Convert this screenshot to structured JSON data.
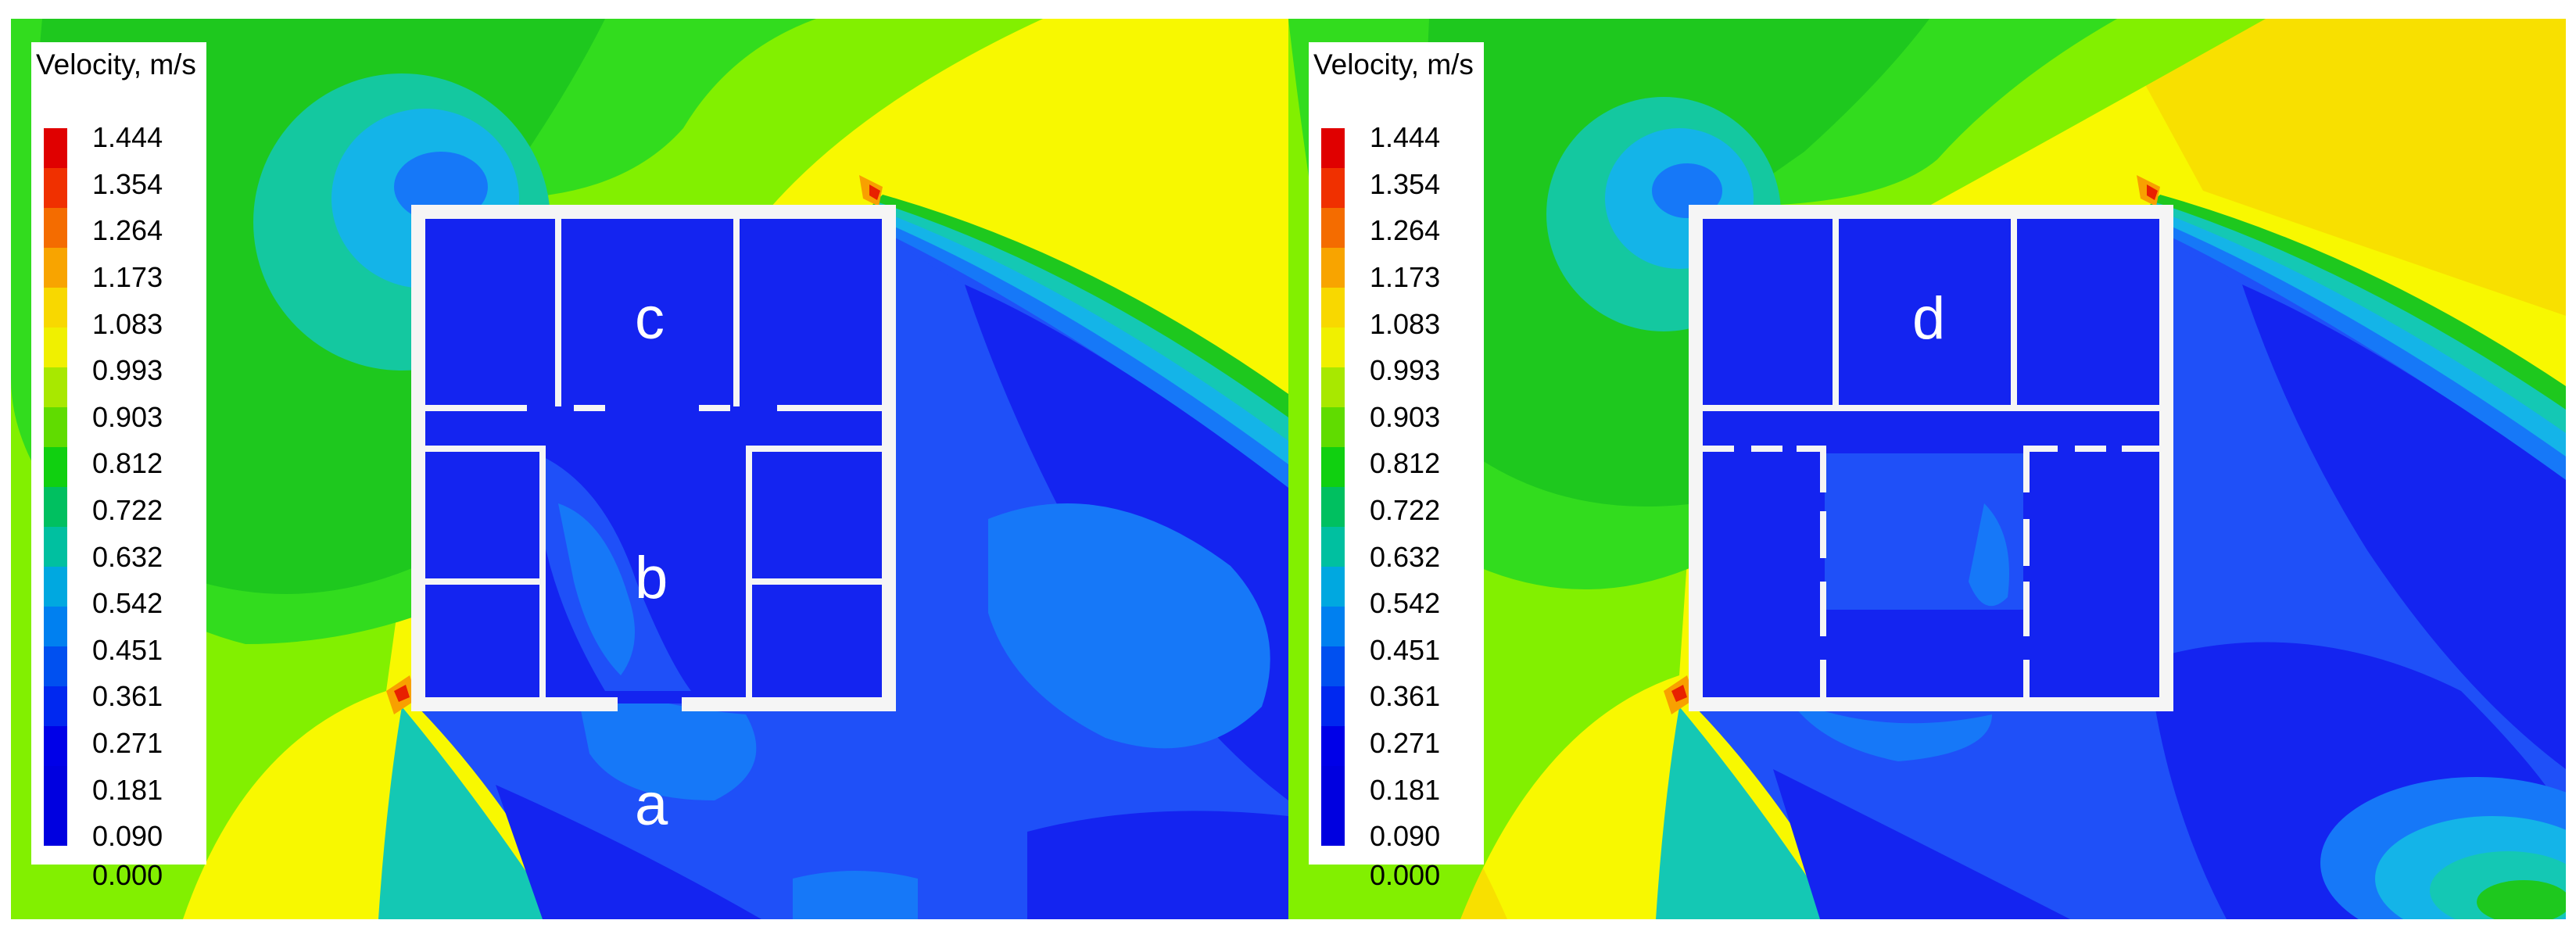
{
  "legend": {
    "title": "Velocity,  m/s",
    "ticks": [
      "1.444",
      "1.354",
      "1.264",
      "1.173",
      "1.083",
      "0.993",
      "0.903",
      "0.812",
      "0.722",
      "0.632",
      "0.542",
      "0.451",
      "0.361",
      "0.271",
      "0.181",
      "0.090",
      "0.000"
    ],
    "colors": [
      "#e00000",
      "#f03000",
      "#f46c00",
      "#f8a400",
      "#f8d800",
      "#f0f000",
      "#a8e800",
      "#60dc00",
      "#10d010",
      "#00c060",
      "#00c0a0",
      "#00a8e0",
      "#0080f0",
      "#0050f0",
      "#0028f0",
      "#0000e8",
      "#0000e8",
      "#0000e0"
    ]
  },
  "panels": [
    {
      "id": "left",
      "labels": [
        "c",
        "b",
        "a"
      ]
    },
    {
      "id": "right",
      "labels": [
        "d"
      ]
    }
  ],
  "colors": {
    "deep_blue": "#1424f0",
    "blue": "#1f50f8",
    "light_blue": "#1678f8",
    "cyan": "#14b4e8",
    "teal": "#14c8b4",
    "green": "#1ec81e",
    "green_light": "#32dc1e",
    "yellow_green": "#82f000",
    "yellow": "#f8f800",
    "orange": "#f8a000",
    "red": "#e82000",
    "wall": "#f5f5f5"
  }
}
